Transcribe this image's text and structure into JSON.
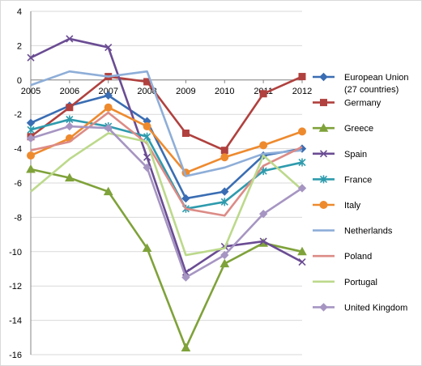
{
  "chart_data": {
    "type": "line",
    "title": "",
    "xlabel": "",
    "ylabel": "",
    "x": [
      "2005",
      "2006",
      "2007",
      "2008",
      "2009",
      "2010",
      "2011",
      "2012"
    ],
    "ylim": [
      -16,
      4
    ],
    "yticks": [
      4,
      2,
      0,
      -2,
      -4,
      -6,
      -8,
      -10,
      -12,
      -14,
      -16
    ],
    "grid": "horizontal",
    "legend_position": "right",
    "series": [
      {
        "name": "European Union (27 countries)",
        "name_lines": [
          "European Union",
          "(27 countries)"
        ],
        "color": "#3a6db3",
        "marker": "diamond",
        "values": [
          -2.5,
          -1.5,
          -0.9,
          -2.4,
          -6.9,
          -6.5,
          -4.4,
          -4.0
        ]
      },
      {
        "name": "Germany",
        "color": "#b0413e",
        "marker": "square",
        "values": [
          -3.3,
          -1.6,
          0.2,
          -0.1,
          -3.1,
          -4.1,
          -0.8,
          0.2
        ]
      },
      {
        "name": "Greece",
        "color": "#7fa23a",
        "marker": "triangle",
        "values": [
          -5.2,
          -5.7,
          -6.5,
          -9.8,
          -15.6,
          -10.7,
          -9.5,
          -10.0
        ]
      },
      {
        "name": "Spain",
        "color": "#6a4c93",
        "marker": "x",
        "values": [
          1.3,
          2.4,
          1.9,
          -4.5,
          -11.2,
          -9.7,
          -9.4,
          -10.6
        ]
      },
      {
        "name": "France",
        "color": "#2e9bad",
        "marker": "star",
        "values": [
          -2.9,
          -2.3,
          -2.7,
          -3.3,
          -7.5,
          -7.1,
          -5.3,
          -4.8
        ]
      },
      {
        "name": "Italy",
        "color": "#ee8a2e",
        "marker": "circle",
        "values": [
          -4.4,
          -3.4,
          -1.6,
          -2.7,
          -5.4,
          -4.5,
          -3.8,
          -3.0
        ]
      },
      {
        "name": "Netherlands",
        "color": "#8eaed8",
        "marker": "none",
        "values": [
          -0.3,
          0.5,
          0.2,
          0.5,
          -5.6,
          -5.1,
          -4.3,
          -4.1
        ]
      },
      {
        "name": "Poland",
        "color": "#dc8b86",
        "marker": "none",
        "values": [
          -4.1,
          -3.6,
          -1.9,
          -3.7,
          -7.5,
          -7.9,
          -5.0,
          -3.9
        ]
      },
      {
        "name": "Portugal",
        "color": "#bcd98b",
        "marker": "none",
        "values": [
          -6.5,
          -4.6,
          -3.1,
          -3.6,
          -10.2,
          -9.8,
          -4.4,
          -6.4
        ]
      },
      {
        "name": "United Kingdom",
        "color": "#a695c2",
        "marker": "diamond",
        "values": [
          -3.4,
          -2.7,
          -2.8,
          -5.1,
          -11.5,
          -10.2,
          -7.8,
          -6.3
        ]
      }
    ]
  }
}
